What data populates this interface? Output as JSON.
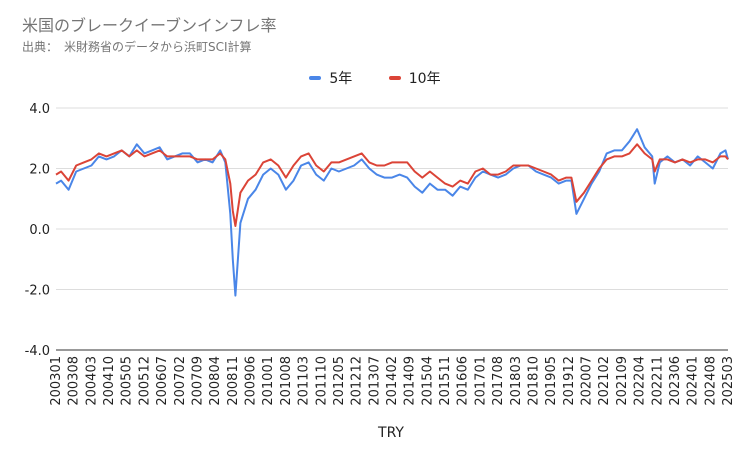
{
  "chart_data": {
    "type": "line",
    "title": "米国のブレークイーブンインフレ率",
    "subtitle": "出典：　米財務省のデータから浜町SCI計算",
    "xlabel": "TRY",
    "ylabel": "",
    "ylim": [
      -4,
      4
    ],
    "yticks": [
      "4.0",
      "2.0",
      "0.0",
      "-2.0",
      "-4.0"
    ],
    "ytick_values": [
      4,
      2,
      0,
      -2,
      -4
    ],
    "grid": true,
    "legend_position": "top",
    "x_tick_labels": [
      "200301",
      "200308",
      "200403",
      "200410",
      "200505",
      "200512",
      "200607",
      "200702",
      "200709",
      "200804",
      "200811",
      "200906",
      "201001",
      "201008",
      "201103",
      "201110",
      "201205",
      "201212",
      "201307",
      "201402",
      "201409",
      "201504",
      "201511",
      "201606",
      "201701",
      "201708",
      "201803",
      "201810",
      "201905",
      "201912",
      "202007",
      "202102",
      "202109",
      "202204",
      "202211",
      "202306",
      "202401",
      "202408",
      "202503"
    ],
    "x_start": "2003-01",
    "x_end": "2025-03",
    "series": [
      {
        "name": "5年",
        "color": "#4a86e8",
        "points": [
          [
            "2003-01",
            1.5
          ],
          [
            "2003-03",
            1.6
          ],
          [
            "2003-06",
            1.3
          ],
          [
            "2003-09",
            1.9
          ],
          [
            "2003-12",
            2.0
          ],
          [
            "2004-03",
            2.1
          ],
          [
            "2004-06",
            2.4
          ],
          [
            "2004-09",
            2.3
          ],
          [
            "2004-12",
            2.4
          ],
          [
            "2005-03",
            2.6
          ],
          [
            "2005-06",
            2.4
          ],
          [
            "2005-09",
            2.8
          ],
          [
            "2005-12",
            2.5
          ],
          [
            "2006-03",
            2.6
          ],
          [
            "2006-06",
            2.7
          ],
          [
            "2006-09",
            2.3
          ],
          [
            "2006-12",
            2.4
          ],
          [
            "2007-03",
            2.5
          ],
          [
            "2007-06",
            2.5
          ],
          [
            "2007-09",
            2.2
          ],
          [
            "2007-12",
            2.3
          ],
          [
            "2008-03",
            2.2
          ],
          [
            "2008-06",
            2.6
          ],
          [
            "2008-08",
            2.2
          ],
          [
            "2008-10",
            0.5
          ],
          [
            "2008-11",
            -1.0
          ],
          [
            "2008-12",
            -2.2
          ],
          [
            "2009-02",
            0.2
          ],
          [
            "2009-05",
            1.0
          ],
          [
            "2009-08",
            1.3
          ],
          [
            "2009-11",
            1.8
          ],
          [
            "2010-02",
            2.0
          ],
          [
            "2010-05",
            1.8
          ],
          [
            "2010-08",
            1.3
          ],
          [
            "2010-11",
            1.6
          ],
          [
            "2011-02",
            2.1
          ],
          [
            "2011-05",
            2.2
          ],
          [
            "2011-08",
            1.8
          ],
          [
            "2011-11",
            1.6
          ],
          [
            "2012-02",
            2.0
          ],
          [
            "2012-05",
            1.9
          ],
          [
            "2012-08",
            2.0
          ],
          [
            "2012-11",
            2.1
          ],
          [
            "2013-02",
            2.3
          ],
          [
            "2013-05",
            2.0
          ],
          [
            "2013-08",
            1.8
          ],
          [
            "2013-11",
            1.7
          ],
          [
            "2014-02",
            1.7
          ],
          [
            "2014-05",
            1.8
          ],
          [
            "2014-08",
            1.7
          ],
          [
            "2014-11",
            1.4
          ],
          [
            "2015-02",
            1.2
          ],
          [
            "2015-05",
            1.5
          ],
          [
            "2015-08",
            1.3
          ],
          [
            "2015-11",
            1.3
          ],
          [
            "2016-02",
            1.1
          ],
          [
            "2016-05",
            1.4
          ],
          [
            "2016-08",
            1.3
          ],
          [
            "2016-11",
            1.7
          ],
          [
            "2017-02",
            1.9
          ],
          [
            "2017-05",
            1.8
          ],
          [
            "2017-08",
            1.7
          ],
          [
            "2017-11",
            1.8
          ],
          [
            "2018-02",
            2.0
          ],
          [
            "2018-05",
            2.1
          ],
          [
            "2018-08",
            2.1
          ],
          [
            "2018-11",
            1.9
          ],
          [
            "2019-02",
            1.8
          ],
          [
            "2019-05",
            1.7
          ],
          [
            "2019-08",
            1.5
          ],
          [
            "2019-11",
            1.6
          ],
          [
            "2020-01",
            1.6
          ],
          [
            "2020-03",
            0.5
          ],
          [
            "2020-06",
            1.0
          ],
          [
            "2020-09",
            1.5
          ],
          [
            "2020-12",
            1.9
          ],
          [
            "2021-03",
            2.5
          ],
          [
            "2021-06",
            2.6
          ],
          [
            "2021-09",
            2.6
          ],
          [
            "2021-12",
            2.9
          ],
          [
            "2022-03",
            3.3
          ],
          [
            "2022-06",
            2.7
          ],
          [
            "2022-09",
            2.4
          ],
          [
            "2022-10",
            1.5
          ],
          [
            "2022-12",
            2.2
          ],
          [
            "2023-03",
            2.4
          ],
          [
            "2023-06",
            2.2
          ],
          [
            "2023-09",
            2.3
          ],
          [
            "2023-12",
            2.1
          ],
          [
            "2024-03",
            2.4
          ],
          [
            "2024-06",
            2.2
          ],
          [
            "2024-09",
            2.0
          ],
          [
            "2024-12",
            2.5
          ],
          [
            "2025-02",
            2.6
          ],
          [
            "2025-03",
            2.3
          ]
        ]
      },
      {
        "name": "10年",
        "color": "#db4437",
        "points": [
          [
            "2003-01",
            1.8
          ],
          [
            "2003-03",
            1.9
          ],
          [
            "2003-06",
            1.6
          ],
          [
            "2003-09",
            2.1
          ],
          [
            "2003-12",
            2.2
          ],
          [
            "2004-03",
            2.3
          ],
          [
            "2004-06",
            2.5
          ],
          [
            "2004-09",
            2.4
          ],
          [
            "2004-12",
            2.5
          ],
          [
            "2005-03",
            2.6
          ],
          [
            "2005-06",
            2.4
          ],
          [
            "2005-09",
            2.6
          ],
          [
            "2005-12",
            2.4
          ],
          [
            "2006-03",
            2.5
          ],
          [
            "2006-06",
            2.6
          ],
          [
            "2006-09",
            2.4
          ],
          [
            "2006-12",
            2.4
          ],
          [
            "2007-03",
            2.4
          ],
          [
            "2007-06",
            2.4
          ],
          [
            "2007-09",
            2.3
          ],
          [
            "2007-12",
            2.3
          ],
          [
            "2008-03",
            2.3
          ],
          [
            "2008-06",
            2.5
          ],
          [
            "2008-08",
            2.3
          ],
          [
            "2008-10",
            1.5
          ],
          [
            "2008-11",
            0.6
          ],
          [
            "2008-12",
            0.1
          ],
          [
            "2009-02",
            1.2
          ],
          [
            "2009-05",
            1.6
          ],
          [
            "2009-08",
            1.8
          ],
          [
            "2009-11",
            2.2
          ],
          [
            "2010-02",
            2.3
          ],
          [
            "2010-05",
            2.1
          ],
          [
            "2010-08",
            1.7
          ],
          [
            "2010-11",
            2.1
          ],
          [
            "2011-02",
            2.4
          ],
          [
            "2011-05",
            2.5
          ],
          [
            "2011-08",
            2.1
          ],
          [
            "2011-11",
            1.9
          ],
          [
            "2012-02",
            2.2
          ],
          [
            "2012-05",
            2.2
          ],
          [
            "2012-08",
            2.3
          ],
          [
            "2012-11",
            2.4
          ],
          [
            "2013-02",
            2.5
          ],
          [
            "2013-05",
            2.2
          ],
          [
            "2013-08",
            2.1
          ],
          [
            "2013-11",
            2.1
          ],
          [
            "2014-02",
            2.2
          ],
          [
            "2014-05",
            2.2
          ],
          [
            "2014-08",
            2.2
          ],
          [
            "2014-11",
            1.9
          ],
          [
            "2015-02",
            1.7
          ],
          [
            "2015-05",
            1.9
          ],
          [
            "2015-08",
            1.7
          ],
          [
            "2015-11",
            1.5
          ],
          [
            "2016-02",
            1.4
          ],
          [
            "2016-05",
            1.6
          ],
          [
            "2016-08",
            1.5
          ],
          [
            "2016-11",
            1.9
          ],
          [
            "2017-02",
            2.0
          ],
          [
            "2017-05",
            1.8
          ],
          [
            "2017-08",
            1.8
          ],
          [
            "2017-11",
            1.9
          ],
          [
            "2018-02",
            2.1
          ],
          [
            "2018-05",
            2.1
          ],
          [
            "2018-08",
            2.1
          ],
          [
            "2018-11",
            2.0
          ],
          [
            "2019-02",
            1.9
          ],
          [
            "2019-05",
            1.8
          ],
          [
            "2019-08",
            1.6
          ],
          [
            "2019-11",
            1.7
          ],
          [
            "2020-01",
            1.7
          ],
          [
            "2020-03",
            0.9
          ],
          [
            "2020-06",
            1.2
          ],
          [
            "2020-09",
            1.6
          ],
          [
            "2020-12",
            2.0
          ],
          [
            "2021-03",
            2.3
          ],
          [
            "2021-06",
            2.4
          ],
          [
            "2021-09",
            2.4
          ],
          [
            "2021-12",
            2.5
          ],
          [
            "2022-03",
            2.8
          ],
          [
            "2022-06",
            2.5
          ],
          [
            "2022-09",
            2.3
          ],
          [
            "2022-10",
            1.9
          ],
          [
            "2022-12",
            2.3
          ],
          [
            "2023-03",
            2.3
          ],
          [
            "2023-06",
            2.2
          ],
          [
            "2023-09",
            2.3
          ],
          [
            "2023-12",
            2.2
          ],
          [
            "2024-03",
            2.3
          ],
          [
            "2024-06",
            2.3
          ],
          [
            "2024-09",
            2.2
          ],
          [
            "2024-12",
            2.4
          ],
          [
            "2025-02",
            2.4
          ],
          [
            "2025-03",
            2.3
          ]
        ]
      }
    ]
  }
}
